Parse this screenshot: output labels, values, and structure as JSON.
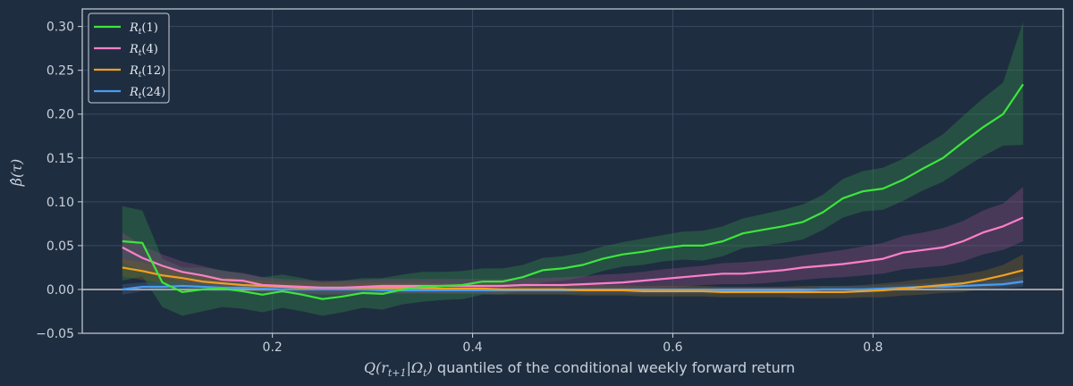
{
  "chart_data": {
    "type": "line",
    "xlabel_math": "Q(r",
    "xlabel_sub": "t+1",
    "xlabel_math2": "|Ω",
    "xlabel_sub2": "t",
    "xlabel_math3": ")",
    "xlabel_text": " quantiles of the conditional weekly forward return",
    "ylabel": "β̂(τ)",
    "xlim": [
      0.01,
      0.99
    ],
    "ylim": [
      -0.05,
      0.32
    ],
    "xticks": [
      0.2,
      0.4,
      0.6,
      0.8
    ],
    "xtick_labels": [
      "0.2",
      "0.4",
      "0.6",
      "0.8"
    ],
    "yticks": [
      -0.05,
      0.0,
      0.05,
      0.1,
      0.15,
      0.2,
      0.25,
      0.3
    ],
    "ytick_labels": [
      "−0.05",
      "0.00",
      "0.05",
      "0.10",
      "0.15",
      "0.20",
      "0.25",
      "0.30"
    ],
    "grid": true,
    "legend_position": "top-left",
    "zero_line_color": "#a0a0a0",
    "series": [
      {
        "name": "R(1)",
        "label_main": "R",
        "label_sub": "t",
        "label_arg": "(1)",
        "color": "#3de53d",
        "band_color": "#2e7d46",
        "x": [
          0.05,
          0.07,
          0.09,
          0.11,
          0.13,
          0.15,
          0.17,
          0.19,
          0.21,
          0.23,
          0.25,
          0.27,
          0.29,
          0.31,
          0.33,
          0.35,
          0.37,
          0.39,
          0.41,
          0.43,
          0.45,
          0.47,
          0.49,
          0.51,
          0.53,
          0.55,
          0.57,
          0.59,
          0.61,
          0.63,
          0.65,
          0.67,
          0.69,
          0.71,
          0.73,
          0.75,
          0.77,
          0.79,
          0.81,
          0.83,
          0.85,
          0.87,
          0.89,
          0.91,
          0.93,
          0.95
        ],
        "values": [
          0.055,
          0.053,
          0.008,
          -0.003,
          0.0,
          0.001,
          -0.002,
          -0.006,
          -0.002,
          -0.006,
          -0.011,
          -0.008,
          -0.004,
          -0.005,
          0.0,
          0.003,
          0.004,
          0.005,
          0.009,
          0.009,
          0.014,
          0.022,
          0.024,
          0.028,
          0.035,
          0.04,
          0.043,
          0.047,
          0.05,
          0.05,
          0.055,
          0.064,
          0.068,
          0.072,
          0.077,
          0.088,
          0.104,
          0.112,
          0.115,
          0.125,
          0.138,
          0.15,
          0.168,
          0.185,
          0.2,
          0.234
        ],
        "upper": [
          0.095,
          0.09,
          0.035,
          0.025,
          0.025,
          0.022,
          0.018,
          0.014,
          0.017,
          0.013,
          0.008,
          0.01,
          0.013,
          0.013,
          0.017,
          0.02,
          0.02,
          0.021,
          0.024,
          0.024,
          0.028,
          0.036,
          0.038,
          0.042,
          0.049,
          0.054,
          0.058,
          0.062,
          0.066,
          0.067,
          0.072,
          0.081,
          0.086,
          0.091,
          0.097,
          0.108,
          0.126,
          0.135,
          0.139,
          0.149,
          0.163,
          0.177,
          0.198,
          0.218,
          0.236,
          0.305
        ],
        "lower": [
          0.01,
          0.015,
          -0.02,
          -0.03,
          -0.025,
          -0.02,
          -0.022,
          -0.026,
          -0.021,
          -0.025,
          -0.03,
          -0.026,
          -0.021,
          -0.023,
          -0.017,
          -0.014,
          -0.012,
          -0.011,
          -0.006,
          -0.006,
          0.0,
          0.008,
          0.01,
          0.014,
          0.021,
          0.026,
          0.028,
          0.032,
          0.034,
          0.033,
          0.038,
          0.047,
          0.05,
          0.053,
          0.057,
          0.068,
          0.082,
          0.089,
          0.091,
          0.101,
          0.113,
          0.123,
          0.138,
          0.152,
          0.164,
          0.165
        ]
      },
      {
        "name": "R(4)",
        "label_main": "R",
        "label_sub": "t",
        "label_arg": "(4)",
        "color": "#ff7fc8",
        "band_color": "#7a4a78",
        "x": [
          0.05,
          0.07,
          0.09,
          0.11,
          0.13,
          0.15,
          0.17,
          0.19,
          0.21,
          0.23,
          0.25,
          0.27,
          0.29,
          0.31,
          0.33,
          0.35,
          0.37,
          0.39,
          0.41,
          0.43,
          0.45,
          0.47,
          0.49,
          0.51,
          0.53,
          0.55,
          0.57,
          0.59,
          0.61,
          0.63,
          0.65,
          0.67,
          0.69,
          0.71,
          0.73,
          0.75,
          0.77,
          0.79,
          0.81,
          0.83,
          0.85,
          0.87,
          0.89,
          0.91,
          0.93,
          0.95
        ],
        "values": [
          0.048,
          0.036,
          0.027,
          0.02,
          0.016,
          0.011,
          0.01,
          0.005,
          0.004,
          0.003,
          0.002,
          0.002,
          0.003,
          0.004,
          0.004,
          0.004,
          0.004,
          0.004,
          0.004,
          0.004,
          0.005,
          0.005,
          0.005,
          0.006,
          0.007,
          0.008,
          0.01,
          0.012,
          0.014,
          0.016,
          0.018,
          0.018,
          0.02,
          0.022,
          0.025,
          0.027,
          0.029,
          0.032,
          0.035,
          0.042,
          0.045,
          0.048,
          0.055,
          0.065,
          0.072,
          0.082
        ],
        "upper": [
          0.065,
          0.05,
          0.04,
          0.032,
          0.027,
          0.021,
          0.019,
          0.014,
          0.012,
          0.011,
          0.01,
          0.01,
          0.011,
          0.012,
          0.012,
          0.012,
          0.012,
          0.012,
          0.012,
          0.012,
          0.013,
          0.013,
          0.014,
          0.015,
          0.017,
          0.018,
          0.02,
          0.023,
          0.025,
          0.027,
          0.03,
          0.031,
          0.033,
          0.035,
          0.039,
          0.042,
          0.045,
          0.049,
          0.053,
          0.061,
          0.065,
          0.07,
          0.078,
          0.09,
          0.098,
          0.117
        ],
        "lower": [
          0.03,
          0.022,
          0.014,
          0.009,
          0.006,
          0.002,
          0.001,
          -0.003,
          -0.004,
          -0.005,
          -0.006,
          -0.006,
          -0.005,
          -0.004,
          -0.004,
          -0.004,
          -0.004,
          -0.004,
          -0.004,
          -0.004,
          -0.003,
          -0.003,
          -0.003,
          -0.002,
          -0.002,
          -0.001,
          0.0,
          0.002,
          0.003,
          0.005,
          0.006,
          0.006,
          0.007,
          0.009,
          0.011,
          0.013,
          0.014,
          0.016,
          0.018,
          0.023,
          0.025,
          0.027,
          0.032,
          0.04,
          0.045,
          0.055
        ]
      },
      {
        "name": "R(12)",
        "label_main": "R",
        "label_sub": "t",
        "label_arg": "(12)",
        "color": "#f0a020",
        "band_color": "#6b5a2e",
        "x": [
          0.05,
          0.07,
          0.09,
          0.11,
          0.13,
          0.15,
          0.17,
          0.19,
          0.21,
          0.23,
          0.25,
          0.27,
          0.29,
          0.31,
          0.33,
          0.35,
          0.37,
          0.39,
          0.41,
          0.43,
          0.45,
          0.47,
          0.49,
          0.51,
          0.53,
          0.55,
          0.57,
          0.59,
          0.61,
          0.63,
          0.65,
          0.67,
          0.69,
          0.71,
          0.73,
          0.75,
          0.77,
          0.79,
          0.81,
          0.83,
          0.85,
          0.87,
          0.89,
          0.91,
          0.93,
          0.95
        ],
        "values": [
          0.025,
          0.021,
          0.016,
          0.013,
          0.009,
          0.007,
          0.005,
          0.004,
          0.003,
          0.002,
          0.002,
          0.002,
          0.002,
          0.002,
          0.002,
          0.002,
          0.001,
          0.001,
          0.001,
          0.0,
          0.0,
          0.0,
          0.0,
          -0.001,
          -0.001,
          -0.001,
          -0.002,
          -0.002,
          -0.002,
          -0.002,
          -0.003,
          -0.003,
          -0.003,
          -0.003,
          -0.003,
          -0.003,
          -0.003,
          -0.002,
          -0.001,
          0.001,
          0.003,
          0.005,
          0.007,
          0.011,
          0.016,
          0.022
        ],
        "upper": [
          0.035,
          0.031,
          0.025,
          0.021,
          0.017,
          0.014,
          0.012,
          0.01,
          0.009,
          0.008,
          0.008,
          0.008,
          0.008,
          0.008,
          0.008,
          0.008,
          0.007,
          0.007,
          0.007,
          0.006,
          0.006,
          0.006,
          0.006,
          0.005,
          0.005,
          0.005,
          0.004,
          0.004,
          0.004,
          0.004,
          0.003,
          0.003,
          0.003,
          0.003,
          0.004,
          0.004,
          0.004,
          0.005,
          0.007,
          0.009,
          0.012,
          0.014,
          0.017,
          0.021,
          0.028,
          0.04
        ],
        "lower": [
          0.015,
          0.011,
          0.007,
          0.005,
          0.002,
          0.0,
          -0.002,
          -0.003,
          -0.003,
          -0.004,
          -0.004,
          -0.004,
          -0.004,
          -0.004,
          -0.004,
          -0.004,
          -0.005,
          -0.005,
          -0.005,
          -0.006,
          -0.006,
          -0.006,
          -0.006,
          -0.007,
          -0.007,
          -0.007,
          -0.008,
          -0.008,
          -0.008,
          -0.008,
          -0.009,
          -0.009,
          -0.009,
          -0.009,
          -0.01,
          -0.01,
          -0.01,
          -0.009,
          -0.009,
          -0.007,
          -0.006,
          -0.004,
          -0.003,
          0.001,
          0.004,
          0.006
        ]
      },
      {
        "name": "R(24)",
        "label_main": "R",
        "label_sub": "t",
        "label_arg": "(24)",
        "color": "#4a9cf0",
        "band_color": "#3a5a80",
        "x": [
          0.05,
          0.07,
          0.09,
          0.11,
          0.13,
          0.15,
          0.17,
          0.19,
          0.21,
          0.23,
          0.25,
          0.27,
          0.29,
          0.31,
          0.33,
          0.35,
          0.37,
          0.39,
          0.41,
          0.43,
          0.45,
          0.47,
          0.49,
          0.51,
          0.53,
          0.55,
          0.57,
          0.59,
          0.61,
          0.63,
          0.65,
          0.67,
          0.69,
          0.71,
          0.73,
          0.75,
          0.77,
          0.79,
          0.81,
          0.83,
          0.85,
          0.87,
          0.89,
          0.91,
          0.93,
          0.95
        ],
        "values": [
          0.0,
          0.003,
          0.003,
          0.004,
          0.003,
          0.002,
          0.002,
          0.001,
          0.0,
          0.0,
          0.0,
          0.0,
          0.0,
          -0.001,
          -0.001,
          -0.001,
          -0.001,
          -0.001,
          -0.001,
          -0.001,
          -0.001,
          -0.001,
          -0.001,
          -0.001,
          -0.001,
          -0.001,
          -0.001,
          -0.001,
          -0.001,
          -0.001,
          -0.001,
          -0.001,
          -0.001,
          -0.001,
          -0.001,
          0.0,
          0.0,
          0.0,
          0.001,
          0.002,
          0.003,
          0.003,
          0.004,
          0.005,
          0.006,
          0.009
        ],
        "upper": [
          0.006,
          0.008,
          0.008,
          0.009,
          0.008,
          0.007,
          0.006,
          0.005,
          0.004,
          0.004,
          0.004,
          0.004,
          0.004,
          0.003,
          0.003,
          0.003,
          0.003,
          0.003,
          0.003,
          0.003,
          0.003,
          0.003,
          0.003,
          0.003,
          0.003,
          0.003,
          0.003,
          0.003,
          0.003,
          0.003,
          0.003,
          0.003,
          0.003,
          0.003,
          0.003,
          0.004,
          0.004,
          0.004,
          0.005,
          0.006,
          0.007,
          0.008,
          0.009,
          0.01,
          0.011,
          0.015
        ],
        "lower": [
          -0.006,
          -0.002,
          -0.002,
          -0.001,
          -0.002,
          -0.003,
          -0.002,
          -0.003,
          -0.004,
          -0.004,
          -0.004,
          -0.004,
          -0.004,
          -0.005,
          -0.005,
          -0.005,
          -0.005,
          -0.005,
          -0.005,
          -0.005,
          -0.005,
          -0.005,
          -0.005,
          -0.005,
          -0.005,
          -0.005,
          -0.005,
          -0.005,
          -0.005,
          -0.005,
          -0.005,
          -0.005,
          -0.005,
          -0.005,
          -0.005,
          -0.004,
          -0.004,
          -0.004,
          -0.003,
          -0.002,
          -0.001,
          -0.002,
          -0.001,
          0.0,
          0.001,
          0.003
        ]
      }
    ]
  }
}
